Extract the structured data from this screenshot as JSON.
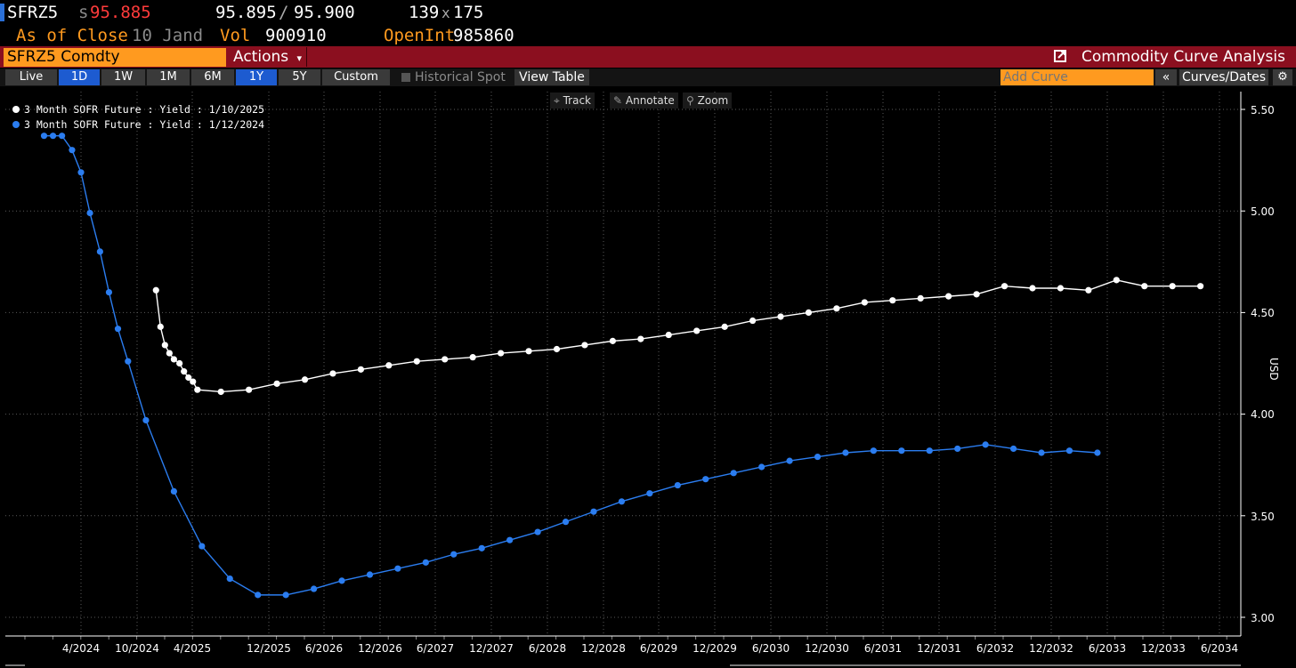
{
  "header": {
    "ticker": "SFRZ5",
    "last_prefix": "s",
    "last_price": "95.885",
    "bid": "95.895",
    "separator": "/",
    "ask": "95.900",
    "bid_size": "139",
    "size_x": "x",
    "ask_size": "175",
    "as_of_label": "As of Close",
    "as_of_date": "10 Jand",
    "vol_label": "Vol",
    "vol_value": "900910",
    "oi_label": "OpenInt",
    "oi_value": "985860"
  },
  "toolbar": {
    "security": "SFRZ5 Comdty",
    "actions_label": "Actions",
    "actions_caret": "▾",
    "title": "Commodity Curve Analysis",
    "export_icon": "external-link-icon",
    "periods": [
      "Live",
      "1D",
      "1W",
      "1M",
      "6M",
      "1Y",
      "5Y",
      "Custom"
    ],
    "active_periods": [
      "1D",
      "1Y"
    ],
    "historical_spot_label": "Historical Spot",
    "view_table_label": "View Table",
    "add_curve_placeholder": "Add Curve",
    "collapse_label": "«",
    "curves_dates_label": "Curves/Dates",
    "settings_icon": "gear-icon"
  },
  "plot_tools": {
    "track_label": "Track",
    "annotate_label": "Annotate",
    "zoom_label": "Zoom"
  },
  "colors": {
    "series_current": "#ffffff",
    "series_prior": "#2b7df0",
    "accent_orange": "#ff9a1f",
    "title_bar": "#8b0f1f"
  },
  "chart_data": {
    "type": "line",
    "ylabel": "USD",
    "ylim": [
      2.95,
      5.55
    ],
    "y_ticks": [
      "3.00",
      "3.50",
      "4.00",
      "4.50",
      "5.00",
      "5.50"
    ],
    "x_ticks": [
      "4/2024",
      "10/2024",
      "4/2025",
      "12/2025",
      "6/2026",
      "12/2026",
      "6/2027",
      "12/2027",
      "6/2028",
      "12/2028",
      "6/2029",
      "12/2029",
      "6/2030",
      "12/2030",
      "6/2031",
      "12/2031",
      "6/2032",
      "12/2032",
      "6/2033",
      "12/2033",
      "6/2034"
    ],
    "grid": true,
    "legend_position": "top-left",
    "series": [
      {
        "name": "3 Month SOFR Future : Yield : 1/10/2025",
        "x": [
          2024.92,
          2024.96,
          2025.0,
          2025.04,
          2025.08,
          2025.13,
          2025.17,
          2025.21,
          2025.25,
          2025.29,
          2025.5,
          2025.75,
          2026.0,
          2026.25,
          2026.5,
          2026.75,
          2027.0,
          2027.25,
          2027.5,
          2027.75,
          2028.0,
          2028.25,
          2028.5,
          2028.75,
          2029.0,
          2029.25,
          2029.5,
          2029.75,
          2030.0,
          2030.25,
          2030.5,
          2030.75,
          2031.0,
          2031.25,
          2031.5,
          2031.75,
          2032.0,
          2032.25,
          2032.5,
          2032.75,
          2033.0,
          2033.25,
          2033.5,
          2033.75,
          2034.0,
          2034.25
        ],
        "y": [
          4.61,
          4.43,
          4.34,
          4.3,
          4.27,
          4.25,
          4.21,
          4.18,
          4.16,
          4.12,
          4.11,
          4.12,
          4.15,
          4.17,
          4.2,
          4.22,
          4.24,
          4.26,
          4.27,
          4.28,
          4.3,
          4.31,
          4.32,
          4.34,
          4.36,
          4.37,
          4.39,
          4.41,
          4.43,
          4.46,
          4.48,
          4.5,
          4.52,
          4.55,
          4.56,
          4.57,
          4.58,
          4.59,
          4.63,
          4.62,
          4.62,
          4.61,
          4.66,
          4.63,
          4.63,
          4.63
        ]
      },
      {
        "name": "3 Month SOFR Future : Yield : 1/12/2024",
        "x": [
          2023.92,
          2024.0,
          2024.08,
          2024.17,
          2024.25,
          2024.33,
          2024.42,
          2024.5,
          2024.58,
          2024.67,
          2024.83,
          2025.08,
          2025.33,
          2025.58,
          2025.83,
          2026.08,
          2026.33,
          2026.58,
          2026.83,
          2027.08,
          2027.33,
          2027.58,
          2027.83,
          2028.08,
          2028.33,
          2028.58,
          2028.83,
          2029.08,
          2029.33,
          2029.58,
          2029.83,
          2030.08,
          2030.33,
          2030.58,
          2030.83,
          2031.08,
          2031.33,
          2031.58,
          2031.83,
          2032.08,
          2032.33,
          2032.58,
          2032.83,
          2033.08,
          2033.33
        ],
        "y": [
          5.37,
          5.37,
          5.37,
          5.3,
          5.19,
          4.99,
          4.8,
          4.6,
          4.42,
          4.26,
          3.97,
          3.62,
          3.35,
          3.19,
          3.11,
          3.11,
          3.14,
          3.18,
          3.21,
          3.24,
          3.27,
          3.31,
          3.34,
          3.38,
          3.42,
          3.47,
          3.52,
          3.57,
          3.61,
          3.65,
          3.68,
          3.71,
          3.74,
          3.77,
          3.79,
          3.81,
          3.82,
          3.82,
          3.82,
          3.83,
          3.85,
          3.83,
          3.81,
          3.82,
          3.81
        ]
      }
    ]
  }
}
